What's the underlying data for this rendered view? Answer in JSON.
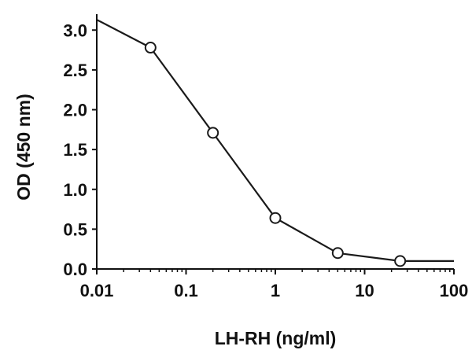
{
  "chart_data": {
    "type": "line",
    "title": "",
    "xlabel": "LH-RH (ng/ml)",
    "ylabel": "OD (450 nm)",
    "x_scale": "log",
    "xlim": [
      0.01,
      100
    ],
    "ylim": [
      0,
      3.2
    ],
    "x_ticks": [
      0.01,
      0.1,
      1,
      10,
      100
    ],
    "x_tick_labels": [
      "0.01",
      "0.1",
      "1",
      "10",
      "100"
    ],
    "y_ticks": [
      0,
      0.5,
      1,
      1.5,
      2,
      2.5,
      3
    ],
    "y_tick_labels": [
      "0.0",
      "0.5",
      "1.0",
      "1.5",
      "2.0",
      "2.5",
      "3.0"
    ],
    "grid": false,
    "legend": "none",
    "series": [
      {
        "markers": "open-circle",
        "color": "#1a1a1a",
        "points": [
          {
            "x": 0.04,
            "y": 2.78
          },
          {
            "x": 0.2,
            "y": 1.71
          },
          {
            "x": 1,
            "y": 0.64
          },
          {
            "x": 5,
            "y": 0.2
          },
          {
            "x": 25,
            "y": 0.1
          }
        ],
        "fit_curve": [
          {
            "x": 0.01,
            "y": 3.13
          },
          {
            "x": 0.04,
            "y": 2.78
          },
          {
            "x": 0.2,
            "y": 1.71
          },
          {
            "x": 1,
            "y": 0.64
          },
          {
            "x": 5,
            "y": 0.2
          },
          {
            "x": 25,
            "y": 0.1
          },
          {
            "x": 100,
            "y": 0.1
          }
        ]
      }
    ]
  }
}
